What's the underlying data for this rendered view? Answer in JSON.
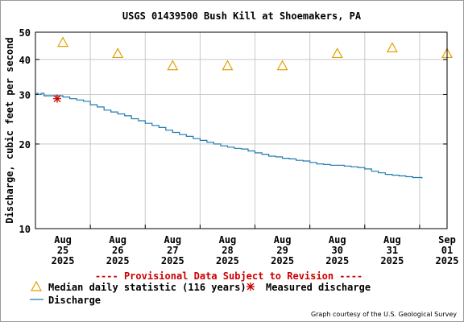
{
  "chart_data": {
    "type": "line",
    "title": "USGS 01439500 Bush Kill at Shoemakers, PA",
    "ylabel": "Discharge, cubic feet per second",
    "xlabel": "",
    "y_scale": "log",
    "ylim": [
      10,
      50
    ],
    "y_ticks": [
      {
        "value": 10,
        "label": "10"
      },
      {
        "value": 20,
        "label": "20"
      },
      {
        "value": 30,
        "label": "30"
      },
      {
        "value": 40,
        "label": "40"
      },
      {
        "value": 50,
        "label": "50"
      }
    ],
    "xlim": [
      "2025-08-25 00:00",
      "2025-09-01 12:00"
    ],
    "x_ticks": [
      {
        "date": "2025-08-25",
        "line1": "Aug",
        "line2": "25",
        "line3": "2025"
      },
      {
        "date": "2025-08-26",
        "line1": "Aug",
        "line2": "26",
        "line3": "2025"
      },
      {
        "date": "2025-08-27",
        "line1": "Aug",
        "line2": "27",
        "line3": "2025"
      },
      {
        "date": "2025-08-28",
        "line1": "Aug",
        "line2": "28",
        "line3": "2025"
      },
      {
        "date": "2025-08-29",
        "line1": "Aug",
        "line2": "29",
        "line3": "2025"
      },
      {
        "date": "2025-08-30",
        "line1": "Aug",
        "line2": "30",
        "line3": "2025"
      },
      {
        "date": "2025-08-31",
        "line1": "Aug",
        "line2": "31",
        "line3": "2025"
      },
      {
        "date": "2025-09-01",
        "line1": "Sep",
        "line2": "01",
        "line3": "2025"
      }
    ],
    "grid": true,
    "colors": {
      "discharge": "#1f7bb0",
      "median": "#e0a000",
      "measured": "#cc0000",
      "grid": "#c8c8c8",
      "axis": "#000000",
      "notice": "#cc0000"
    },
    "series": [
      {
        "key": "discharge",
        "style": "line",
        "points": [
          [
            "2025-08-25 00:00",
            30.3
          ],
          [
            "2025-08-25 01:15",
            30.0
          ],
          [
            "2025-08-25 02:30",
            30.3
          ],
          [
            "2025-08-25 03:45",
            29.7
          ],
          [
            "2025-08-25 06:00",
            29.7
          ],
          [
            "2025-08-25 09:00",
            29.7
          ],
          [
            "2025-08-25 12:00",
            29.4
          ],
          [
            "2025-08-25 15:00",
            29.0
          ],
          [
            "2025-08-25 18:00",
            28.7
          ],
          [
            "2025-08-25 21:00",
            28.4
          ],
          [
            "2025-08-26 00:00",
            27.6
          ],
          [
            "2025-08-26 03:00",
            27.1
          ],
          [
            "2025-08-26 06:00",
            26.4
          ],
          [
            "2025-08-26 09:00",
            26.0
          ],
          [
            "2025-08-26 12:00",
            25.6
          ],
          [
            "2025-08-26 15:00",
            25.2
          ],
          [
            "2025-08-26 18:00",
            24.6
          ],
          [
            "2025-08-26 21:00",
            24.2
          ],
          [
            "2025-08-27 00:00",
            23.7
          ],
          [
            "2025-08-27 03:00",
            23.3
          ],
          [
            "2025-08-27 06:00",
            22.9
          ],
          [
            "2025-08-27 09:00",
            22.4
          ],
          [
            "2025-08-27 12:00",
            22.0
          ],
          [
            "2025-08-27 15:00",
            21.6
          ],
          [
            "2025-08-27 18:00",
            21.3
          ],
          [
            "2025-08-27 21:00",
            20.9
          ],
          [
            "2025-08-28 00:00",
            20.6
          ],
          [
            "2025-08-28 03:00",
            20.3
          ],
          [
            "2025-08-28 06:00",
            20.0
          ],
          [
            "2025-08-28 09:00",
            19.7
          ],
          [
            "2025-08-28 12:00",
            19.5
          ],
          [
            "2025-08-28 15:00",
            19.3
          ],
          [
            "2025-08-28 18:00",
            19.2
          ],
          [
            "2025-08-28 21:00",
            18.9
          ],
          [
            "2025-08-29 00:00",
            18.6
          ],
          [
            "2025-08-29 03:00",
            18.4
          ],
          [
            "2025-08-29 06:00",
            18.1
          ],
          [
            "2025-08-29 09:00",
            18.0
          ],
          [
            "2025-08-29 12:00",
            17.8
          ],
          [
            "2025-08-29 15:00",
            17.7
          ],
          [
            "2025-08-29 18:00",
            17.5
          ],
          [
            "2025-08-29 21:00",
            17.4
          ],
          [
            "2025-08-30 00:00",
            17.2
          ],
          [
            "2025-08-30 03:00",
            17.0
          ],
          [
            "2025-08-30 06:00",
            16.9
          ],
          [
            "2025-08-30 09:00",
            16.8
          ],
          [
            "2025-08-30 12:00",
            16.8
          ],
          [
            "2025-08-30 15:00",
            16.7
          ],
          [
            "2025-08-30 18:00",
            16.6
          ],
          [
            "2025-08-30 21:00",
            16.5
          ],
          [
            "2025-08-31 00:00",
            16.3
          ],
          [
            "2025-08-31 03:00",
            16.0
          ],
          [
            "2025-08-31 06:00",
            15.8
          ],
          [
            "2025-08-31 09:00",
            15.6
          ],
          [
            "2025-08-31 12:00",
            15.5
          ],
          [
            "2025-08-31 15:00",
            15.4
          ],
          [
            "2025-08-31 18:00",
            15.3
          ],
          [
            "2025-08-31 21:00",
            15.2
          ],
          [
            "2025-09-01 00:00",
            15.2
          ],
          [
            "2025-09-01 01:00",
            15.1
          ]
        ]
      },
      {
        "key": "median",
        "style": "triangle",
        "points": [
          [
            "2025-08-25 12:00",
            46
          ],
          [
            "2025-08-26 12:00",
            42
          ],
          [
            "2025-08-27 12:00",
            38
          ],
          [
            "2025-08-28 12:00",
            38
          ],
          [
            "2025-08-29 12:00",
            38
          ],
          [
            "2025-08-30 12:00",
            42
          ],
          [
            "2025-08-31 12:00",
            44
          ],
          [
            "2025-09-01 12:00",
            42
          ]
        ]
      },
      {
        "key": "measured",
        "style": "asterisk",
        "points": [
          [
            "2025-08-25 09:30",
            29.0
          ]
        ]
      }
    ],
    "provisional_notice": "---- Provisional Data Subject to Revision ----",
    "legend": [
      {
        "key": "median",
        "label": "Median daily statistic (116 years)"
      },
      {
        "key": "measured",
        "label": "Measured discharge"
      },
      {
        "key": "discharge",
        "label": "Discharge"
      }
    ],
    "legend_position": "bottom-left",
    "credit": "Graph courtesy of the U.S. Geological Survey"
  }
}
